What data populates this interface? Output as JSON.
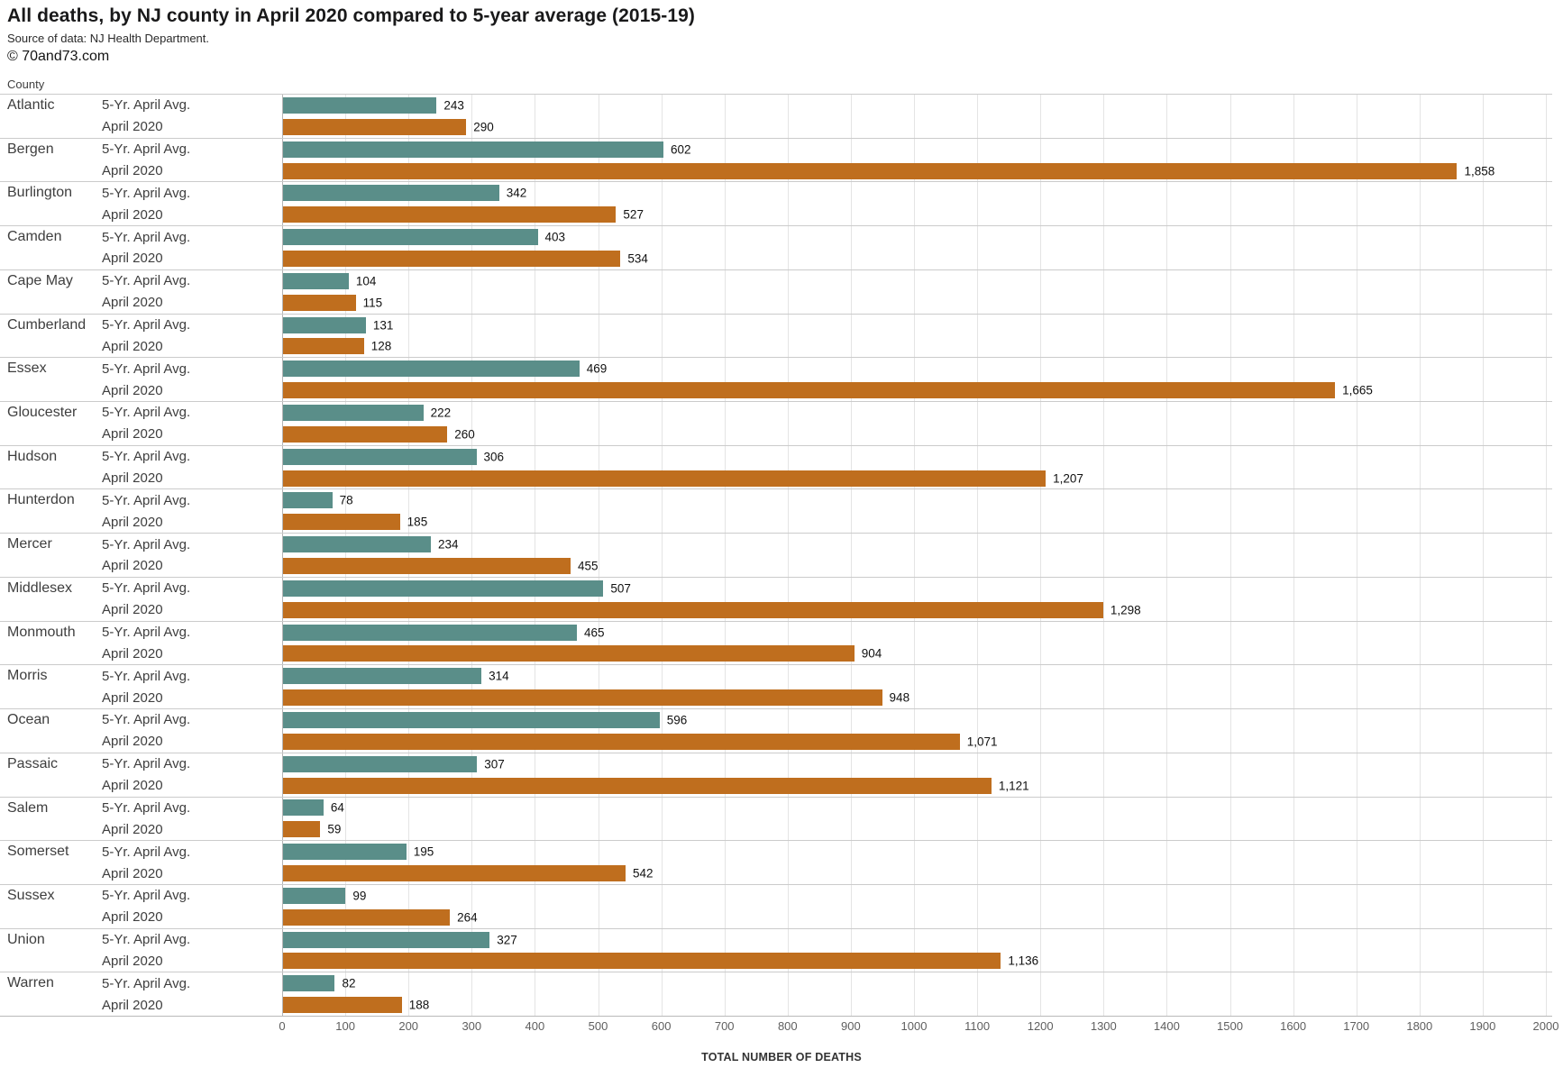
{
  "header": {
    "title": "All deaths, by NJ county in April 2020 compared to 5-year average (2015-19)",
    "subtitle": "Source of data: NJ Health Department.",
    "copyright": "© 70and73.com"
  },
  "chart_data": {
    "type": "bar",
    "orientation": "horizontal",
    "column_header": "County",
    "xlabel": "TOTAL NUMBER OF DEATHS",
    "xlim": [
      0,
      2000
    ],
    "xtick_step": 100,
    "grid": true,
    "legend_position": "inline-row-labels",
    "categories": [
      "Atlantic",
      "Bergen",
      "Burlington",
      "Camden",
      "Cape May",
      "Cumberland",
      "Essex",
      "Gloucester",
      "Hudson",
      "Hunterdon",
      "Mercer",
      "Middlesex",
      "Monmouth",
      "Morris",
      "Ocean",
      "Passaic",
      "Salem",
      "Somerset",
      "Sussex",
      "Union",
      "Warren"
    ],
    "series": [
      {
        "name": "5-Yr. April Avg.",
        "color": "#5A8E89",
        "values": [
          243,
          602,
          342,
          403,
          104,
          131,
          469,
          222,
          306,
          78,
          234,
          507,
          465,
          314,
          596,
          307,
          64,
          195,
          99,
          327,
          82
        ]
      },
      {
        "name": "April 2020",
        "color": "#BF6E1E",
        "values": [
          290,
          1858,
          527,
          534,
          115,
          128,
          1665,
          260,
          1207,
          185,
          455,
          1298,
          904,
          948,
          1071,
          1121,
          59,
          542,
          264,
          1136,
          188
        ]
      }
    ]
  },
  "colors": {
    "series_avg": "#5A8E89",
    "series_2020": "#BF6E1E",
    "gridline": "#e4e4e4",
    "axis_line": "#b5b5b5",
    "row_separator": "#cbcbcb"
  }
}
